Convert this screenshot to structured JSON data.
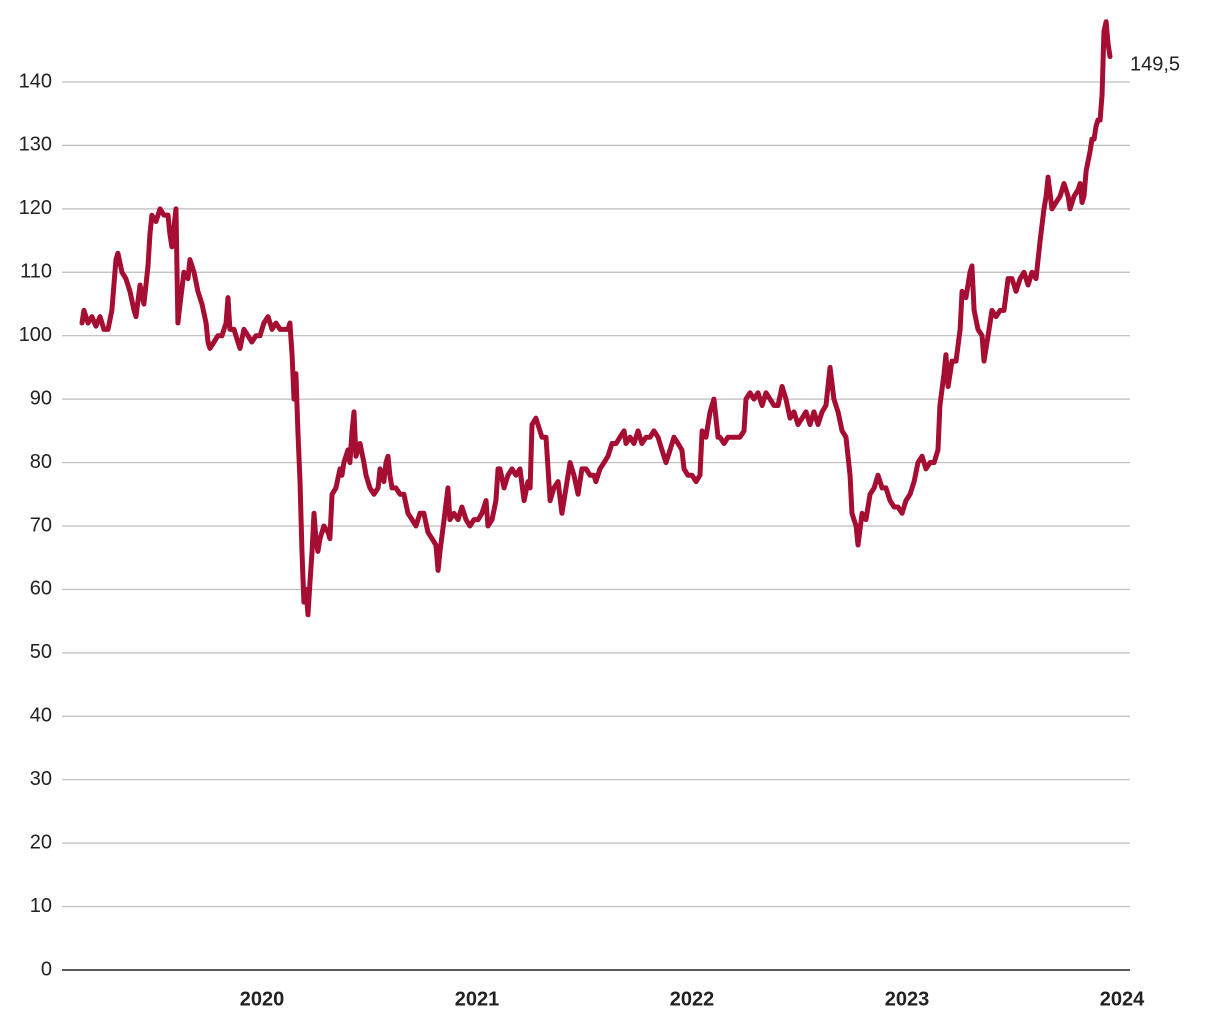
{
  "chart_data": {
    "type": "line",
    "annotation": "149,5",
    "color": "#a50d32",
    "grid": true,
    "xlim": [
      2019.07,
      2024.037
    ],
    "xticks": [
      2020,
      2021,
      2022,
      2023,
      2024
    ],
    "ylim": [
      0,
      150
    ],
    "yticks": [
      0,
      10,
      20,
      30,
      40,
      50,
      60,
      70,
      80,
      90,
      100,
      110,
      120,
      130,
      140
    ],
    "x": [
      2019.163,
      2019.172,
      2019.191,
      2019.209,
      2019.228,
      2019.247,
      2019.265,
      2019.284,
      2019.302,
      2019.321,
      2019.33,
      2019.349,
      2019.367,
      2019.386,
      2019.405,
      2019.414,
      2019.433,
      2019.451,
      2019.47,
      2019.479,
      2019.488,
      2019.507,
      2019.526,
      2019.544,
      2019.563,
      2019.572,
      2019.581,
      2019.6,
      2019.609,
      2019.619,
      2019.637,
      2019.656,
      2019.665,
      2019.684,
      2019.702,
      2019.721,
      2019.74,
      2019.749,
      2019.758,
      2019.777,
      2019.795,
      2019.814,
      2019.833,
      2019.842,
      2019.851,
      2019.87,
      2019.888,
      2019.898,
      2019.916,
      2019.935,
      2019.953,
      2019.972,
      2019.991,
      2020.009,
      2020.028,
      2020.047,
      2020.065,
      2020.084,
      2020.102,
      2020.121,
      2020.13,
      2020.14,
      2020.149,
      2020.158,
      2020.167,
      2020.177,
      2020.186,
      2020.195,
      2020.205,
      2020.214,
      2020.223,
      2020.233,
      2020.242,
      2020.251,
      2020.26,
      2020.27,
      2020.288,
      2020.307,
      2020.316,
      2020.326,
      2020.344,
      2020.363,
      2020.372,
      2020.381,
      2020.4,
      2020.409,
      2020.419,
      2020.428,
      2020.437,
      2020.456,
      2020.474,
      2020.484,
      2020.502,
      2020.521,
      2020.54,
      2020.549,
      2020.567,
      2020.577,
      2020.586,
      2020.595,
      2020.605,
      2020.623,
      2020.642,
      2020.66,
      2020.679,
      2020.698,
      2020.716,
      2020.735,
      2020.753,
      2020.772,
      2020.791,
      2020.809,
      2020.819,
      2020.828,
      2020.847,
      2020.865,
      2020.874,
      2020.893,
      2020.912,
      2020.93,
      2020.949,
      2020.967,
      2020.986,
      2021.005,
      2021.023,
      2021.042,
      2021.051,
      2021.07,
      2021.088,
      2021.098,
      2021.107,
      2021.126,
      2021.144,
      2021.163,
      2021.181,
      2021.2,
      2021.219,
      2021.237,
      2021.247,
      2021.256,
      2021.274,
      2021.293,
      2021.302,
      2021.321,
      2021.34,
      2021.358,
      2021.377,
      2021.395,
      2021.414,
      2021.433,
      2021.451,
      2021.47,
      2021.488,
      2021.507,
      2021.526,
      2021.544,
      2021.553,
      2021.572,
      2021.591,
      2021.609,
      2021.628,
      2021.647,
      2021.665,
      2021.684,
      2021.693,
      2021.712,
      2021.73,
      2021.749,
      2021.767,
      2021.786,
      2021.805,
      2021.823,
      2021.842,
      2021.86,
      2021.879,
      2021.898,
      2021.916,
      2021.935,
      2021.953,
      2021.963,
      2021.981,
      2022.0,
      2022.019,
      2022.037,
      2022.047,
      2022.065,
      2022.084,
      2022.102,
      2022.121,
      2022.13,
      2022.149,
      2022.167,
      2022.186,
      2022.205,
      2022.223,
      2022.242,
      2022.251,
      2022.27,
      2022.288,
      2022.307,
      2022.326,
      2022.344,
      2022.363,
      2022.381,
      2022.4,
      2022.419,
      2022.437,
      2022.456,
      2022.474,
      2022.493,
      2022.512,
      2022.53,
      2022.549,
      2022.567,
      2022.586,
      2022.605,
      2022.623,
      2022.642,
      2022.66,
      2022.679,
      2022.698,
      2022.716,
      2022.735,
      2022.744,
      2022.763,
      2022.772,
      2022.791,
      2022.809,
      2022.828,
      2022.847,
      2022.865,
      2022.884,
      2022.902,
      2022.921,
      2022.94,
      2022.958,
      2022.977,
      2022.995,
      2023.014,
      2023.033,
      2023.051,
      2023.07,
      2023.088,
      2023.107,
      2023.126,
      2023.144,
      2023.153,
      2023.172,
      2023.181,
      2023.191,
      2023.209,
      2023.228,
      2023.247,
      2023.256,
      2023.274,
      2023.293,
      2023.302,
      2023.312,
      2023.33,
      2023.349,
      2023.358,
      2023.377,
      2023.395,
      2023.414,
      2023.433,
      2023.451,
      2023.47,
      2023.488,
      2023.507,
      2023.526,
      2023.544,
      2023.563,
      2023.581,
      2023.6,
      2023.619,
      2023.637,
      2023.647,
      2023.656,
      2023.674,
      2023.693,
      2023.712,
      2023.73,
      2023.749,
      2023.758,
      2023.777,
      2023.795,
      2023.805,
      2023.814,
      2023.823,
      2023.833,
      2023.851,
      2023.86,
      2023.87,
      2023.879,
      2023.888,
      2023.898,
      2023.907,
      2023.916,
      2023.926,
      2023.935,
      2023.944
    ],
    "values": [
      102,
      104,
      102,
      103,
      101.5,
      103,
      101,
      101,
      104,
      112,
      113,
      110,
      109,
      107,
      104,
      103,
      108,
      105,
      111,
      116,
      119,
      118,
      120,
      119,
      119,
      116,
      114,
      120,
      102,
      105,
      110,
      109,
      112,
      110,
      107,
      105,
      102,
      99,
      98,
      99,
      100,
      100,
      102,
      106,
      101,
      101,
      99,
      98,
      101,
      100,
      99,
      100,
      100,
      102,
      103,
      101,
      102,
      101,
      101,
      101,
      102,
      97,
      90,
      94,
      85,
      77,
      66,
      58,
      60,
      56,
      61,
      66,
      72,
      68,
      66,
      68,
      70,
      69,
      68,
      75,
      76,
      79,
      78,
      80,
      82,
      80,
      85,
      88,
      81,
      83,
      80,
      78,
      76,
      75,
      76,
      79,
      77,
      80,
      81,
      78,
      76,
      76,
      75,
      75,
      72,
      71,
      70,
      72,
      72,
      69,
      68,
      67,
      63,
      66,
      71,
      76,
      71,
      72,
      71,
      73,
      71,
      70,
      71,
      71,
      72,
      74,
      70,
      71,
      74,
      79,
      79,
      76,
      78,
      79,
      78,
      79,
      74,
      77,
      76,
      86,
      87,
      85,
      84,
      84,
      74,
      76,
      77,
      72,
      76,
      80,
      78,
      75,
      79,
      79,
      78,
      78,
      77,
      79,
      80,
      81,
      83,
      83,
      84,
      85,
      83,
      84,
      83,
      85,
      83,
      84,
      84,
      85,
      84,
      82,
      80,
      82,
      84,
      83,
      82,
      79,
      78,
      78,
      77,
      78,
      85,
      84,
      88,
      90,
      84,
      84,
      83,
      84,
      84,
      84,
      84,
      85,
      90,
      91,
      90,
      91,
      89,
      91,
      90,
      89,
      89,
      92,
      90,
      87,
      88,
      86,
      87,
      88,
      86,
      88,
      86,
      88,
      89,
      95,
      90,
      88,
      85,
      84,
      78,
      72,
      70,
      67,
      72,
      71,
      75,
      76,
      78,
      76,
      76,
      74,
      73,
      73,
      72,
      74,
      75,
      77,
      80,
      81,
      79,
      80,
      80,
      82,
      89,
      94,
      97,
      92,
      96,
      96,
      101,
      107,
      106,
      110,
      111,
      104,
      101,
      100,
      96,
      100,
      104,
      103,
      104,
      104,
      109,
      109,
      107,
      109,
      110,
      108,
      110,
      109,
      115,
      120,
      122,
      125,
      120,
      121,
      122,
      124,
      122,
      120,
      122,
      123,
      124,
      121,
      122,
      126,
      129,
      131,
      131,
      133,
      134,
      134,
      138,
      148,
      149.5,
      146,
      144
    ]
  }
}
